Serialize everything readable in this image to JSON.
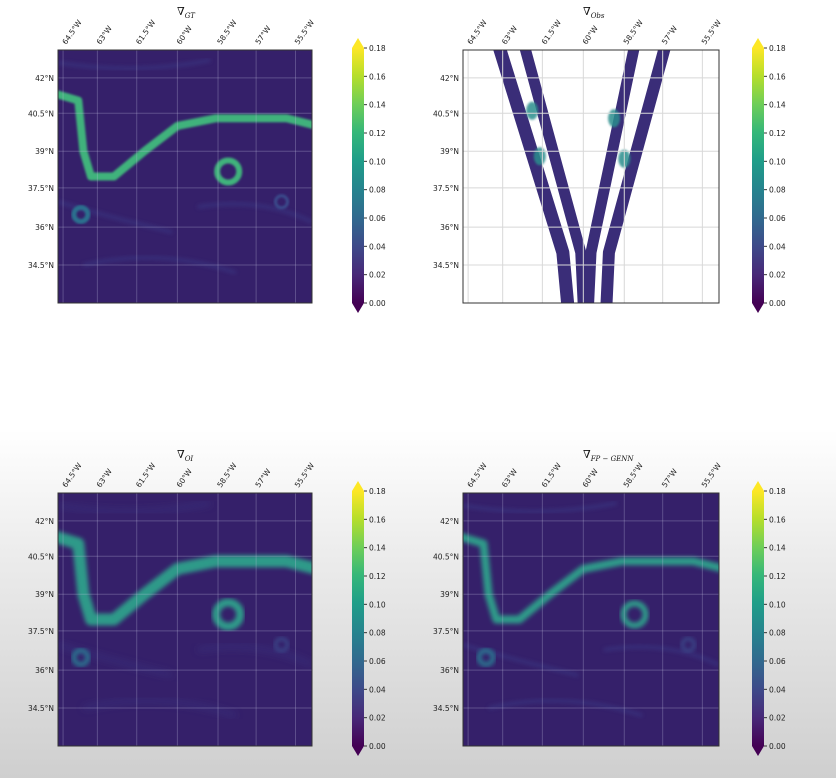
{
  "colorbar": {
    "ticks": [
      "0.18",
      "0.16",
      "0.14",
      "0.12",
      "0.10",
      "0.08",
      "0.06",
      "0.04",
      "0.02",
      "0.00"
    ],
    "colors": [
      "#440154",
      "#482878",
      "#3e4989",
      "#31688e",
      "#26828e",
      "#1f9e89",
      "#35b779",
      "#6ece58",
      "#b5de2b",
      "#fde725"
    ]
  },
  "chart_data": [
    {
      "type": "heatmap",
      "title_symbol": "∇",
      "title_sub": "GT",
      "x_ticks": [
        "64.5°W",
        "63°W",
        "61.5°W",
        "60°W",
        "58.5°W",
        "57°W",
        "55.5°W"
      ],
      "y_ticks": [
        "42°N",
        "40.5°N",
        "39°N",
        "37.5°N",
        "36°N",
        "34.5°N"
      ],
      "colorbar_range": [
        0.0,
        0.18
      ]
    },
    {
      "type": "heatmap",
      "title_symbol": "∇",
      "title_sub": "Obs",
      "x_ticks": [
        "64.5°W",
        "63°W",
        "61.5°W",
        "60°W",
        "58.5°W",
        "57°W",
        "55.5°W"
      ],
      "y_ticks": [
        "42°N",
        "40.5°N",
        "39°N",
        "37.5°N",
        "36°N",
        "34.5°N"
      ],
      "colorbar_range": [
        0.0,
        0.18
      ]
    },
    {
      "type": "heatmap",
      "title_symbol": "∇",
      "title_sub": "OI",
      "x_ticks": [
        "64.5°W",
        "63°W",
        "61.5°W",
        "60°W",
        "58.5°W",
        "57°W",
        "55.5°W"
      ],
      "y_ticks": [
        "42°N",
        "40.5°N",
        "39°N",
        "37.5°N",
        "36°N",
        "34.5°N"
      ],
      "colorbar_range": [
        0.0,
        0.18
      ]
    },
    {
      "type": "heatmap",
      "title_symbol": "∇",
      "title_sub": "FP − GENN",
      "x_ticks": [
        "64.5°W",
        "63°W",
        "61.5°W",
        "60°W",
        "58.5°W",
        "57°W",
        "55.5°W"
      ],
      "y_ticks": [
        "42°N",
        "40.5°N",
        "39°N",
        "37.5°N",
        "36°N",
        "34.5°N"
      ],
      "colorbar_range": [
        0.0,
        0.18
      ]
    }
  ]
}
